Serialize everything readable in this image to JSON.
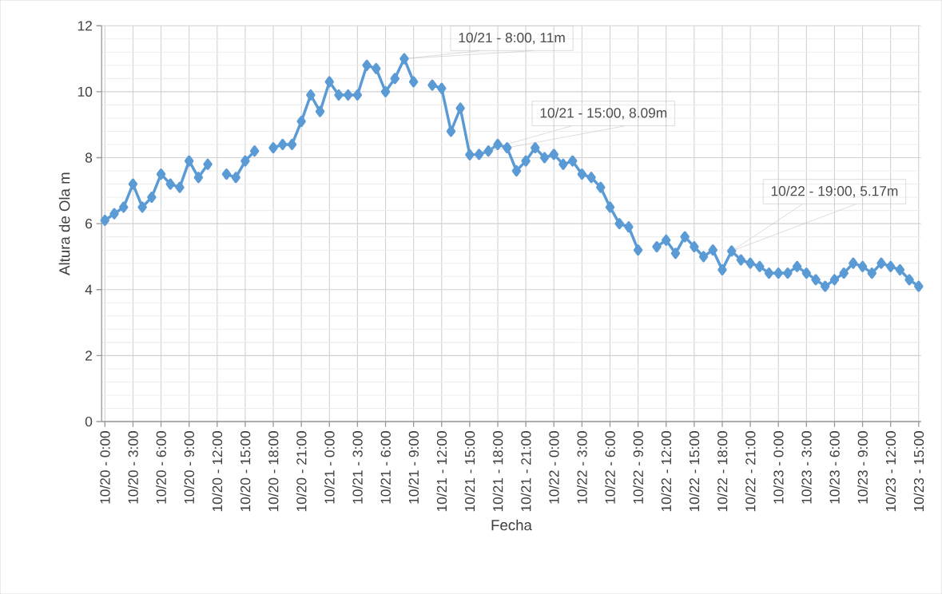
{
  "chart_data": {
    "type": "line",
    "xlabel": "Fecha",
    "ylabel": "Altura de Ola m",
    "categories": [
      "10/20 - 0:00",
      null,
      null,
      "10/20 - 3:00",
      null,
      null,
      "10/20 - 6:00",
      null,
      null,
      "10/20 - 9:00",
      null,
      null,
      "10/20 - 12:00",
      null,
      null,
      "10/20 - 15:00",
      null,
      null,
      "10/20 - 18:00",
      null,
      null,
      "10/20 - 21:00",
      null,
      null,
      "10/21 - 0:00",
      null,
      null,
      "10/21 - 3:00",
      null,
      null,
      "10/21 - 6:00",
      null,
      null,
      "10/21 - 9:00",
      null,
      null,
      "10/21 - 12:00",
      null,
      null,
      "10/21 - 15:00",
      null,
      null,
      "10/21 - 18:00",
      null,
      null,
      "10/21 - 21:00",
      null,
      null,
      "10/22 - 0:00",
      null,
      null,
      "10/22 - 3:00",
      null,
      null,
      "10/22 - 6:00",
      null,
      null,
      "10/22 - 9:00",
      null,
      null,
      "10/22 - 12:00",
      null,
      null,
      "10/22 - 15:00",
      null,
      null,
      "10/22 - 18:00",
      null,
      null,
      "10/22 - 21:00",
      null,
      null,
      "10/23 - 0:00",
      null,
      null,
      "10/23 - 3:00",
      null,
      null,
      "10/23 - 6:00",
      null,
      null,
      "10/23 - 9:00",
      null,
      null,
      "10/23 - 12:00",
      null,
      null,
      "10/23 - 15:00"
    ],
    "values": [
      6.1,
      6.3,
      6.5,
      7.2,
      6.5,
      6.8,
      7.5,
      7.2,
      7.1,
      7.9,
      7.4,
      7.8,
      null,
      7.5,
      7.4,
      7.9,
      8.2,
      null,
      8.3,
      8.4,
      8.4,
      9.1,
      9.9,
      9.4,
      10.3,
      9.9,
      9.9,
      9.9,
      10.8,
      10.7,
      10.0,
      10.4,
      11,
      10.3,
      null,
      10.2,
      10.1,
      8.8,
      9.5,
      8.09,
      8.1,
      8.2,
      8.4,
      8.3,
      7.6,
      7.9,
      8.3,
      8.0,
      8.1,
      7.8,
      7.9,
      7.5,
      7.4,
      7.1,
      6.5,
      6.0,
      5.9,
      5.2,
      null,
      5.3,
      5.5,
      5.1,
      5.6,
      5.3,
      5.0,
      5.2,
      4.6,
      5.17,
      4.9,
      4.8,
      4.7,
      4.5,
      4.5,
      4.5,
      4.7,
      4.5,
      4.3,
      4.1,
      4.3,
      4.5,
      4.8,
      4.7,
      4.5,
      4.8,
      4.7,
      4.6,
      4.3,
      4.1
    ],
    "color": "#5b9bd5",
    "marker": "diamond",
    "line_style": "solid",
    "ylim": [
      0,
      12
    ],
    "yticks": [
      0,
      2,
      4,
      6,
      8,
      10,
      12
    ],
    "grid": true,
    "annotations": [
      "10/21 - 8:00, 11m",
      "10/21 - 15:00, 8.09m",
      "10/22 - 19:00, 5.17m"
    ]
  }
}
